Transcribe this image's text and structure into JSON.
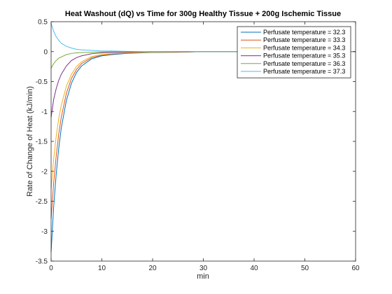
{
  "chart_data": {
    "type": "line",
    "title": "Heat Washout (dQ) vs Time for 300g Healthy Tissue + 200g Ischemic Tissue",
    "xlabel": "min",
    "ylabel": "Rate of Change of Heat (kJ/min)",
    "xlim": [
      0,
      60
    ],
    "ylim": [
      -3.5,
      0.5
    ],
    "xticks": [
      0,
      10,
      20,
      30,
      40,
      50,
      60
    ],
    "yticks": [
      -3.5,
      -3,
      -2.5,
      -2,
      -1.5,
      -1,
      -0.5,
      0,
      0.5
    ],
    "grid": false,
    "legend_position": "top-right",
    "x": [
      0,
      0.5,
      1,
      1.5,
      2,
      3,
      4,
      5,
      6,
      8,
      10,
      12,
      15,
      18,
      20,
      25,
      30,
      35,
      40,
      50,
      60
    ],
    "series": [
      {
        "name": "Perfusate temperature = 32.3",
        "color": "#0072bd",
        "values": [
          -3.35,
          -2.6,
          -2.05,
          -1.62,
          -1.28,
          -0.82,
          -0.53,
          -0.35,
          -0.24,
          -0.12,
          -0.07,
          -0.05,
          -0.03,
          -0.02,
          -0.015,
          -0.01,
          0,
          0,
          0,
          0,
          0
        ]
      },
      {
        "name": "Perfusate temperature = 33.3",
        "color": "#d95319",
        "values": [
          -2.8,
          -2.2,
          -1.75,
          -1.38,
          -1.1,
          -0.7,
          -0.45,
          -0.3,
          -0.2,
          -0.1,
          -0.06,
          -0.04,
          -0.025,
          -0.015,
          -0.01,
          -0.01,
          0,
          0,
          0,
          0,
          0
        ]
      },
      {
        "name": "Perfusate temperature = 34.3",
        "color": "#edb120",
        "values": [
          -2.3,
          -1.8,
          -1.42,
          -1.12,
          -0.9,
          -0.58,
          -0.38,
          -0.25,
          -0.17,
          -0.08,
          -0.05,
          -0.035,
          -0.02,
          -0.015,
          -0.01,
          -0.005,
          0,
          0,
          0,
          0,
          0
        ]
      },
      {
        "name": "Perfusate temperature = 35.3",
        "color": "#7e2f8e",
        "values": [
          -1.1,
          -0.8,
          -0.62,
          -0.48,
          -0.38,
          -0.24,
          -0.15,
          -0.1,
          -0.07,
          -0.035,
          -0.02,
          -0.015,
          -0.01,
          -0.005,
          0,
          0,
          0,
          0,
          0,
          0,
          0
        ]
      },
      {
        "name": "Perfusate temperature = 36.3",
        "color": "#77ac30",
        "values": [
          -0.28,
          -0.2,
          -0.15,
          -0.11,
          -0.09,
          -0.05,
          -0.03,
          -0.02,
          -0.015,
          -0.01,
          -0.005,
          0,
          0,
          0,
          0,
          0,
          0,
          0,
          0,
          0,
          0
        ]
      },
      {
        "name": "Perfusate temperature = 37.3",
        "color": "#4dbeee",
        "values": [
          0.47,
          0.34,
          0.25,
          0.19,
          0.14,
          0.09,
          0.06,
          0.04,
          0.03,
          0.02,
          0.01,
          0.01,
          0.005,
          0,
          0,
          0,
          0,
          0,
          0,
          0,
          0
        ]
      }
    ]
  }
}
